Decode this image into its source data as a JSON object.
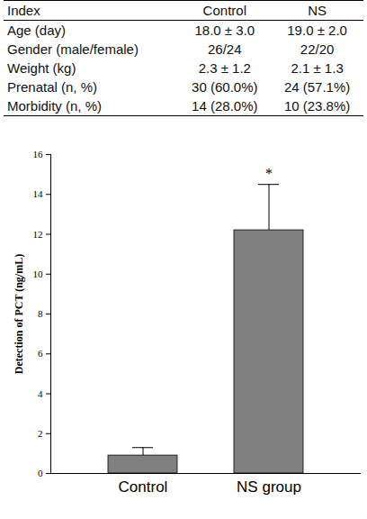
{
  "table": {
    "header": [
      "Index",
      "Control",
      "NS"
    ],
    "rows": [
      [
        "Age (day)",
        "18.0 ± 3.0",
        "19.0 ± 2.0"
      ],
      [
        "Gender (male/female)",
        "26/24",
        "22/20"
      ],
      [
        "Weight (kg)",
        "2.3 ± 1.2",
        "2.1 ± 1.3"
      ],
      [
        "Prenatal (n, %)",
        "30 (60.0%)",
        "24 (57.1%)"
      ],
      [
        "Morbidity (n, %)",
        "14 (28.0%)",
        "10 (23.8%)"
      ]
    ]
  },
  "chart_data": {
    "type": "bar",
    "categories": [
      "Control",
      "NS group"
    ],
    "values": [
      0.9,
      12.2
    ],
    "errors": [
      0.4,
      2.3
    ],
    "color": "#808080",
    "y_label": "Detection of PCT (ng/mL)",
    "ylim": [
      0,
      16
    ],
    "yticks": [
      0,
      2,
      4,
      6,
      8,
      10,
      12,
      14,
      16
    ],
    "annotations": [
      {
        "text": "*",
        "category": "NS group"
      }
    ]
  }
}
